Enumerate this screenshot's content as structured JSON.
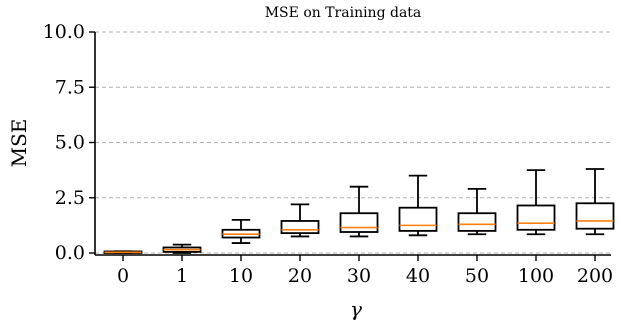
{
  "chart_data": {
    "type": "box",
    "title": "MSE on Training data",
    "xlabel": "γ",
    "ylabel": "MSE",
    "ylim": [
      0,
      10
    ],
    "yticks": [
      0.0,
      2.5,
      5.0,
      7.5,
      10.0
    ],
    "ytick_labels": [
      "0.0",
      "2.5",
      "5.0",
      "7.5",
      "10.0"
    ],
    "grid": "horizontal-dashed",
    "categories": [
      "0",
      "1",
      "10",
      "20",
      "30",
      "40",
      "50",
      "100",
      "200"
    ],
    "boxes": [
      {
        "whislo": 0.0,
        "q1": 0.0,
        "med": 0.03,
        "q3": 0.07,
        "whishi": 0.08
      },
      {
        "whislo": 0.0,
        "q1": 0.05,
        "med": 0.15,
        "q3": 0.25,
        "whishi": 0.38
      },
      {
        "whislo": 0.45,
        "q1": 0.7,
        "med": 0.85,
        "q3": 1.05,
        "whishi": 1.5
      },
      {
        "whislo": 0.75,
        "q1": 0.9,
        "med": 1.05,
        "q3": 1.45,
        "whishi": 2.2
      },
      {
        "whislo": 0.75,
        "q1": 0.95,
        "med": 1.15,
        "q3": 1.8,
        "whishi": 3.0
      },
      {
        "whislo": 0.8,
        "q1": 1.0,
        "med": 1.25,
        "q3": 2.05,
        "whishi": 3.5
      },
      {
        "whislo": 0.85,
        "q1": 1.0,
        "med": 1.3,
        "q3": 1.8,
        "whishi": 2.9
      },
      {
        "whislo": 0.85,
        "q1": 1.05,
        "med": 1.35,
        "q3": 2.15,
        "whishi": 3.75
      },
      {
        "whislo": 0.85,
        "q1": 1.1,
        "med": 1.45,
        "q3": 2.25,
        "whishi": 3.8
      }
    ],
    "colors": {
      "box_edge": "#000000",
      "median": "#ff7f0e",
      "grid": "#b0b0b0"
    }
  }
}
